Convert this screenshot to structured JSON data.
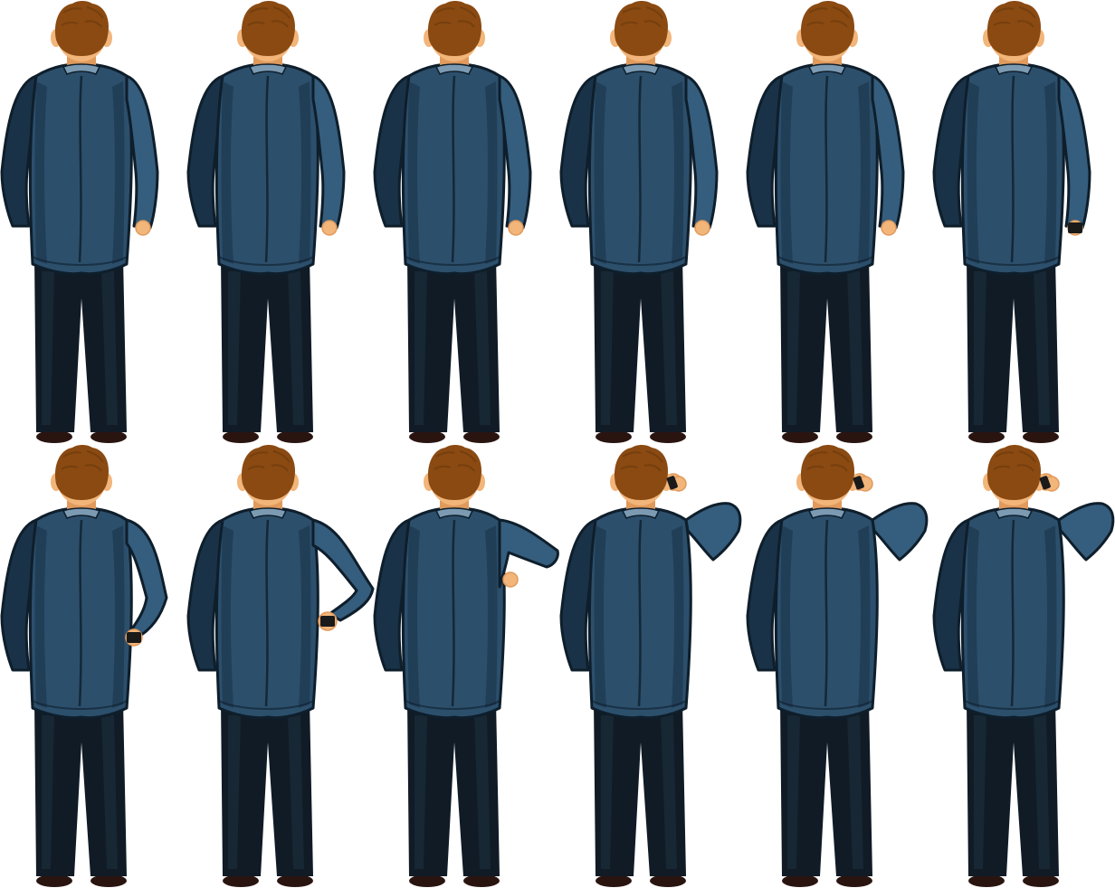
{
  "sprite_sheet": {
    "rows": 2,
    "columns": 6,
    "background": "#ffffff",
    "palette": {
      "hair": "#8a4a12",
      "hair_dark": "#6e3a0c",
      "skin": "#f2b57a",
      "skin_shade": "#e09a5c",
      "jacket": "#2c4f6c",
      "jacket_light": "#355d7d",
      "jacket_dark": "#1a3247",
      "outline": "#0e1e2b",
      "collar": "#7c9bb3",
      "pants": "#101b26",
      "pants_light": "#1b2c3b",
      "shoes": "#2a1410",
      "phone": "#1a1a1a"
    },
    "frames": [
      {
        "name": "frame-01",
        "right_arm": "down",
        "phone": "none"
      },
      {
        "name": "frame-02",
        "right_arm": "down",
        "phone": "none"
      },
      {
        "name": "frame-03",
        "right_arm": "down",
        "phone": "none"
      },
      {
        "name": "frame-04",
        "right_arm": "down",
        "phone": "none"
      },
      {
        "name": "frame-05",
        "right_arm": "down",
        "phone": "none"
      },
      {
        "name": "frame-06",
        "right_arm": "down",
        "phone": "in-hand"
      },
      {
        "name": "frame-07",
        "right_arm": "low-bent",
        "phone": "in-hand"
      },
      {
        "name": "frame-08",
        "right_arm": "hip",
        "phone": "in-hand"
      },
      {
        "name": "frame-09",
        "right_arm": "raised-side",
        "phone": "none"
      },
      {
        "name": "frame-10",
        "right_arm": "at-ear",
        "phone": "at-ear"
      },
      {
        "name": "frame-11",
        "right_arm": "at-ear",
        "phone": "at-ear"
      },
      {
        "name": "frame-12",
        "right_arm": "at-ear",
        "phone": "at-ear"
      }
    ]
  }
}
